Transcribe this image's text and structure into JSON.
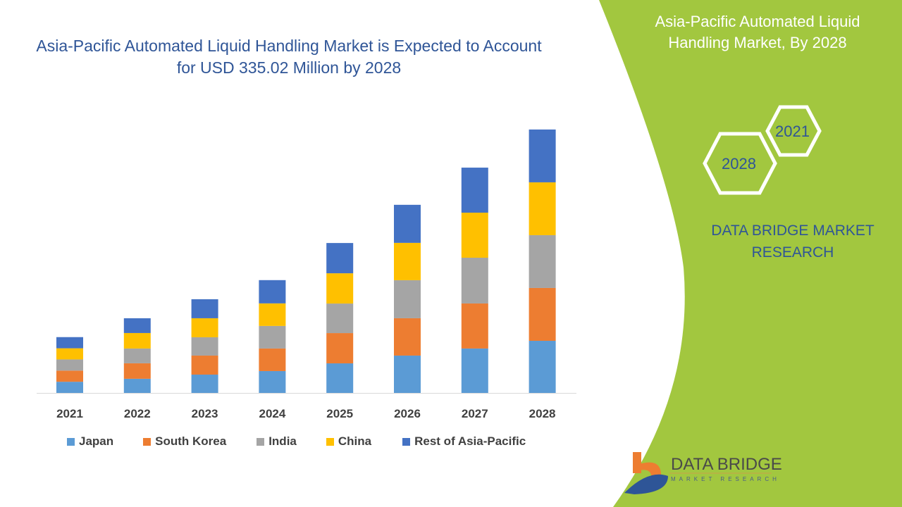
{
  "header": {
    "title": "Asia-Pacific Automated Liquid Handling Market is Expected to Account for USD 335.02 Million by 2028"
  },
  "side_panel": {
    "title": "Asia-Pacific Automated Liquid Handling Market, By 2028",
    "hex_years": [
      "2021",
      "2028"
    ],
    "brand": "DATA BRIDGE MARKET RESEARCH",
    "logo_text": "DATA BRIDGE",
    "logo_subtext": "MARKET RESEARCH",
    "panel_color": "#a2c73f"
  },
  "chart_data": {
    "type": "bar",
    "stacked": true,
    "title": "Asia-Pacific Automated Liquid Handling Market is Expected to Account for USD 335.02 Million by 2028",
    "xlabel": "",
    "ylabel": "",
    "grid": false,
    "legend_position": "bottom",
    "categories": [
      "2021",
      "2022",
      "2023",
      "2024",
      "2025",
      "2026",
      "2027",
      "2028"
    ],
    "ylim": [
      0,
      350
    ],
    "series": [
      {
        "name": "Japan",
        "color": "#5b9bd5",
        "values": [
          14.2,
          18.0,
          23.3,
          27.8,
          37.6,
          47.5,
          56.5,
          66.3
        ]
      },
      {
        "name": "South Korea",
        "color": "#ed7d31",
        "values": [
          14.2,
          19.7,
          24.2,
          28.7,
          38.5,
          47.5,
          57.3,
          67.2
        ]
      },
      {
        "name": "India",
        "color": "#a5a5a5",
        "values": [
          14.2,
          18.8,
          23.3,
          28.7,
          37.6,
          48.4,
          58.2,
          67.2
        ]
      },
      {
        "name": "China",
        "color": "#ffc000",
        "values": [
          14.2,
          19.7,
          24.2,
          28.7,
          38.5,
          47.5,
          57.3,
          67.2
        ]
      },
      {
        "name": "Rest of Asia-Pacific",
        "color": "#4472c4",
        "values": [
          14.2,
          18.8,
          24.2,
          29.6,
          38.5,
          48.4,
          57.3,
          67.2
        ]
      }
    ]
  }
}
